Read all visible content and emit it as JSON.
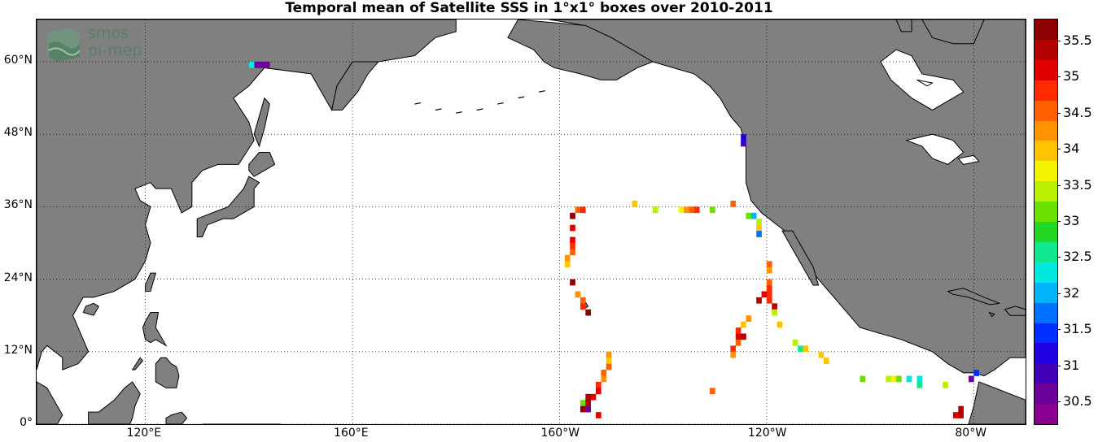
{
  "title": "Temporal mean of Satellite SSS in 1°x1° boxes over 2010-2011",
  "logo": {
    "line1": "smos",
    "line2": "pi-mep"
  },
  "lat_labels": [
    {
      "text": "60°N",
      "lat": 60
    },
    {
      "text": "48°N",
      "lat": 48
    },
    {
      "text": "36°N",
      "lat": 36
    },
    {
      "text": "24°N",
      "lat": 24
    },
    {
      "text": "12°N",
      "lat": 12
    },
    {
      "text": "0°",
      "lat": 0
    }
  ],
  "lon_labels": [
    {
      "text": "120°E",
      "lon": 120
    },
    {
      "text": "160°E",
      "lon": 160
    },
    {
      "text": "160°W",
      "lon": 200
    },
    {
      "text": "120°W",
      "lon": 240
    },
    {
      "text": "80°W",
      "lon": 280
    }
  ],
  "colorbar": {
    "labels": [
      "35.5",
      "35",
      "34.5",
      "34",
      "33.5",
      "33",
      "32.5",
      "32",
      "31.5",
      "31",
      "30.5"
    ],
    "colors": [
      "#8b0000",
      "#b30000",
      "#e00000",
      "#ff2a00",
      "#ff6000",
      "#ff9400",
      "#ffc400",
      "#f4f400",
      "#b8f000",
      "#6ae000",
      "#22d822",
      "#10e890",
      "#00e8e0",
      "#00b4f8",
      "#0070ff",
      "#0030ff",
      "#2000e0",
      "#4000b8",
      "#6a0098",
      "#8a0090"
    ],
    "min": 30.2,
    "max": 35.8
  },
  "map": {
    "lon_min": 99,
    "lon_max": 290,
    "lat_min": 0,
    "lat_max": 67,
    "land_color": "#808080"
  },
  "sss_boxes": [
    {
      "lon": 141,
      "lat": 59,
      "v": 30.6
    },
    {
      "lon": 142,
      "lat": 59,
      "v": 30.5
    },
    {
      "lon": 143,
      "lat": 59,
      "v": 30.7
    },
    {
      "lon": 140,
      "lat": 59,
      "v": 32.3
    },
    {
      "lon": 235,
      "lat": 47,
      "v": 31.2
    },
    {
      "lon": 235,
      "lat": 46,
      "v": 30.9
    },
    {
      "lon": 202,
      "lat": 34,
      "v": 35.6
    },
    {
      "lon": 203,
      "lat": 35,
      "v": 34.6
    },
    {
      "lon": 204,
      "lat": 35,
      "v": 34.8
    },
    {
      "lon": 214,
      "lat": 36,
      "v": 34.1
    },
    {
      "lon": 218,
      "lat": 35,
      "v": 33.5
    },
    {
      "lon": 223,
      "lat": 35,
      "v": 33.8
    },
    {
      "lon": 224,
      "lat": 35,
      "v": 34.3
    },
    {
      "lon": 225,
      "lat": 35,
      "v": 34.6
    },
    {
      "lon": 226,
      "lat": 35,
      "v": 34.9
    },
    {
      "lon": 229,
      "lat": 35,
      "v": 33.1
    },
    {
      "lon": 233,
      "lat": 36,
      "v": 34.4
    },
    {
      "lon": 236,
      "lat": 34,
      "v": 33.0
    },
    {
      "lon": 237,
      "lat": 34,
      "v": 32.1
    },
    {
      "lon": 238,
      "lat": 33,
      "v": 33.4
    },
    {
      "lon": 238,
      "lat": 32,
      "v": 34.0
    },
    {
      "lon": 238,
      "lat": 31,
      "v": 31.7
    },
    {
      "lon": 202,
      "lat": 32,
      "v": 35.2
    },
    {
      "lon": 202,
      "lat": 30,
      "v": 35.0
    },
    {
      "lon": 202,
      "lat": 29,
      "v": 34.8
    },
    {
      "lon": 202,
      "lat": 28,
      "v": 34.5
    },
    {
      "lon": 201,
      "lat": 27,
      "v": 34.3
    },
    {
      "lon": 201,
      "lat": 26,
      "v": 34.0
    },
    {
      "lon": 202,
      "lat": 23,
      "v": 35.7
    },
    {
      "lon": 203,
      "lat": 21,
      "v": 34.2
    },
    {
      "lon": 204,
      "lat": 20,
      "v": 34.6
    },
    {
      "lon": 204,
      "lat": 19,
      "v": 34.9
    },
    {
      "lon": 205,
      "lat": 18,
      "v": 35.6
    },
    {
      "lon": 240,
      "lat": 26,
      "v": 34.6
    },
    {
      "lon": 240,
      "lat": 25,
      "v": 34.2
    },
    {
      "lon": 240,
      "lat": 23,
      "v": 34.5
    },
    {
      "lon": 240,
      "lat": 22,
      "v": 34.8
    },
    {
      "lon": 240,
      "lat": 21,
      "v": 34.9
    },
    {
      "lon": 239,
      "lat": 21,
      "v": 35.2
    },
    {
      "lon": 238,
      "lat": 20,
      "v": 35.3
    },
    {
      "lon": 240,
      "lat": 20,
      "v": 34.7
    },
    {
      "lon": 241,
      "lat": 19,
      "v": 35.4
    },
    {
      "lon": 241,
      "lat": 18,
      "v": 33.4
    },
    {
      "lon": 242,
      "lat": 16,
      "v": 34.1
    },
    {
      "lon": 236,
      "lat": 17,
      "v": 34.3
    },
    {
      "lon": 235,
      "lat": 16,
      "v": 34.0
    },
    {
      "lon": 234,
      "lat": 15,
      "v": 34.8
    },
    {
      "lon": 234,
      "lat": 14,
      "v": 35.1
    },
    {
      "lon": 235,
      "lat": 14,
      "v": 35.3
    },
    {
      "lon": 234,
      "lat": 13,
      "v": 34.6
    },
    {
      "lon": 233,
      "lat": 12,
      "v": 34.9
    },
    {
      "lon": 233,
      "lat": 11,
      "v": 34.2
    },
    {
      "lon": 245,
      "lat": 13,
      "v": 33.3
    },
    {
      "lon": 246,
      "lat": 12,
      "v": 32.6
    },
    {
      "lon": 247,
      "lat": 12,
      "v": 33.9
    },
    {
      "lon": 250,
      "lat": 11,
      "v": 34.0
    },
    {
      "lon": 251,
      "lat": 10,
      "v": 33.9
    },
    {
      "lon": 258,
      "lat": 7,
      "v": 33.2
    },
    {
      "lon": 263,
      "lat": 7,
      "v": 33.4
    },
    {
      "lon": 264,
      "lat": 7,
      "v": 33.6
    },
    {
      "lon": 265,
      "lat": 7,
      "v": 33.0
    },
    {
      "lon": 267,
      "lat": 7,
      "v": 32.2
    },
    {
      "lon": 269,
      "lat": 7,
      "v": 32.4
    },
    {
      "lon": 269,
      "lat": 6,
      "v": 32.7
    },
    {
      "lon": 274,
      "lat": 6,
      "v": 33.5
    },
    {
      "lon": 279,
      "lat": 7,
      "v": 30.6
    },
    {
      "lon": 280,
      "lat": 8,
      "v": 31.4
    },
    {
      "lon": 276,
      "lat": 1,
      "v": 35.2
    },
    {
      "lon": 277,
      "lat": 1,
      "v": 35.3
    },
    {
      "lon": 277,
      "lat": 2,
      "v": 35.4
    },
    {
      "lon": 229,
      "lat": 5,
      "v": 34.4
    },
    {
      "lon": 209,
      "lat": 11,
      "v": 34.3
    },
    {
      "lon": 209,
      "lat": 10,
      "v": 34.0
    },
    {
      "lon": 209,
      "lat": 9,
      "v": 34.6
    },
    {
      "lon": 208,
      "lat": 8,
      "v": 34.4
    },
    {
      "lon": 208,
      "lat": 7,
      "v": 34.2
    },
    {
      "lon": 207,
      "lat": 6,
      "v": 34.8
    },
    {
      "lon": 207,
      "lat": 5,
      "v": 35.0
    },
    {
      "lon": 206,
      "lat": 4,
      "v": 35.2
    },
    {
      "lon": 205,
      "lat": 4,
      "v": 35.3
    },
    {
      "lon": 204,
      "lat": 3,
      "v": 33.2
    },
    {
      "lon": 205,
      "lat": 3,
      "v": 35.5
    },
    {
      "lon": 204,
      "lat": 2,
      "v": 35.7
    },
    {
      "lon": 205,
      "lat": 2,
      "v": 30.6
    },
    {
      "lon": 207,
      "lat": 1,
      "v": 35.1
    }
  ]
}
